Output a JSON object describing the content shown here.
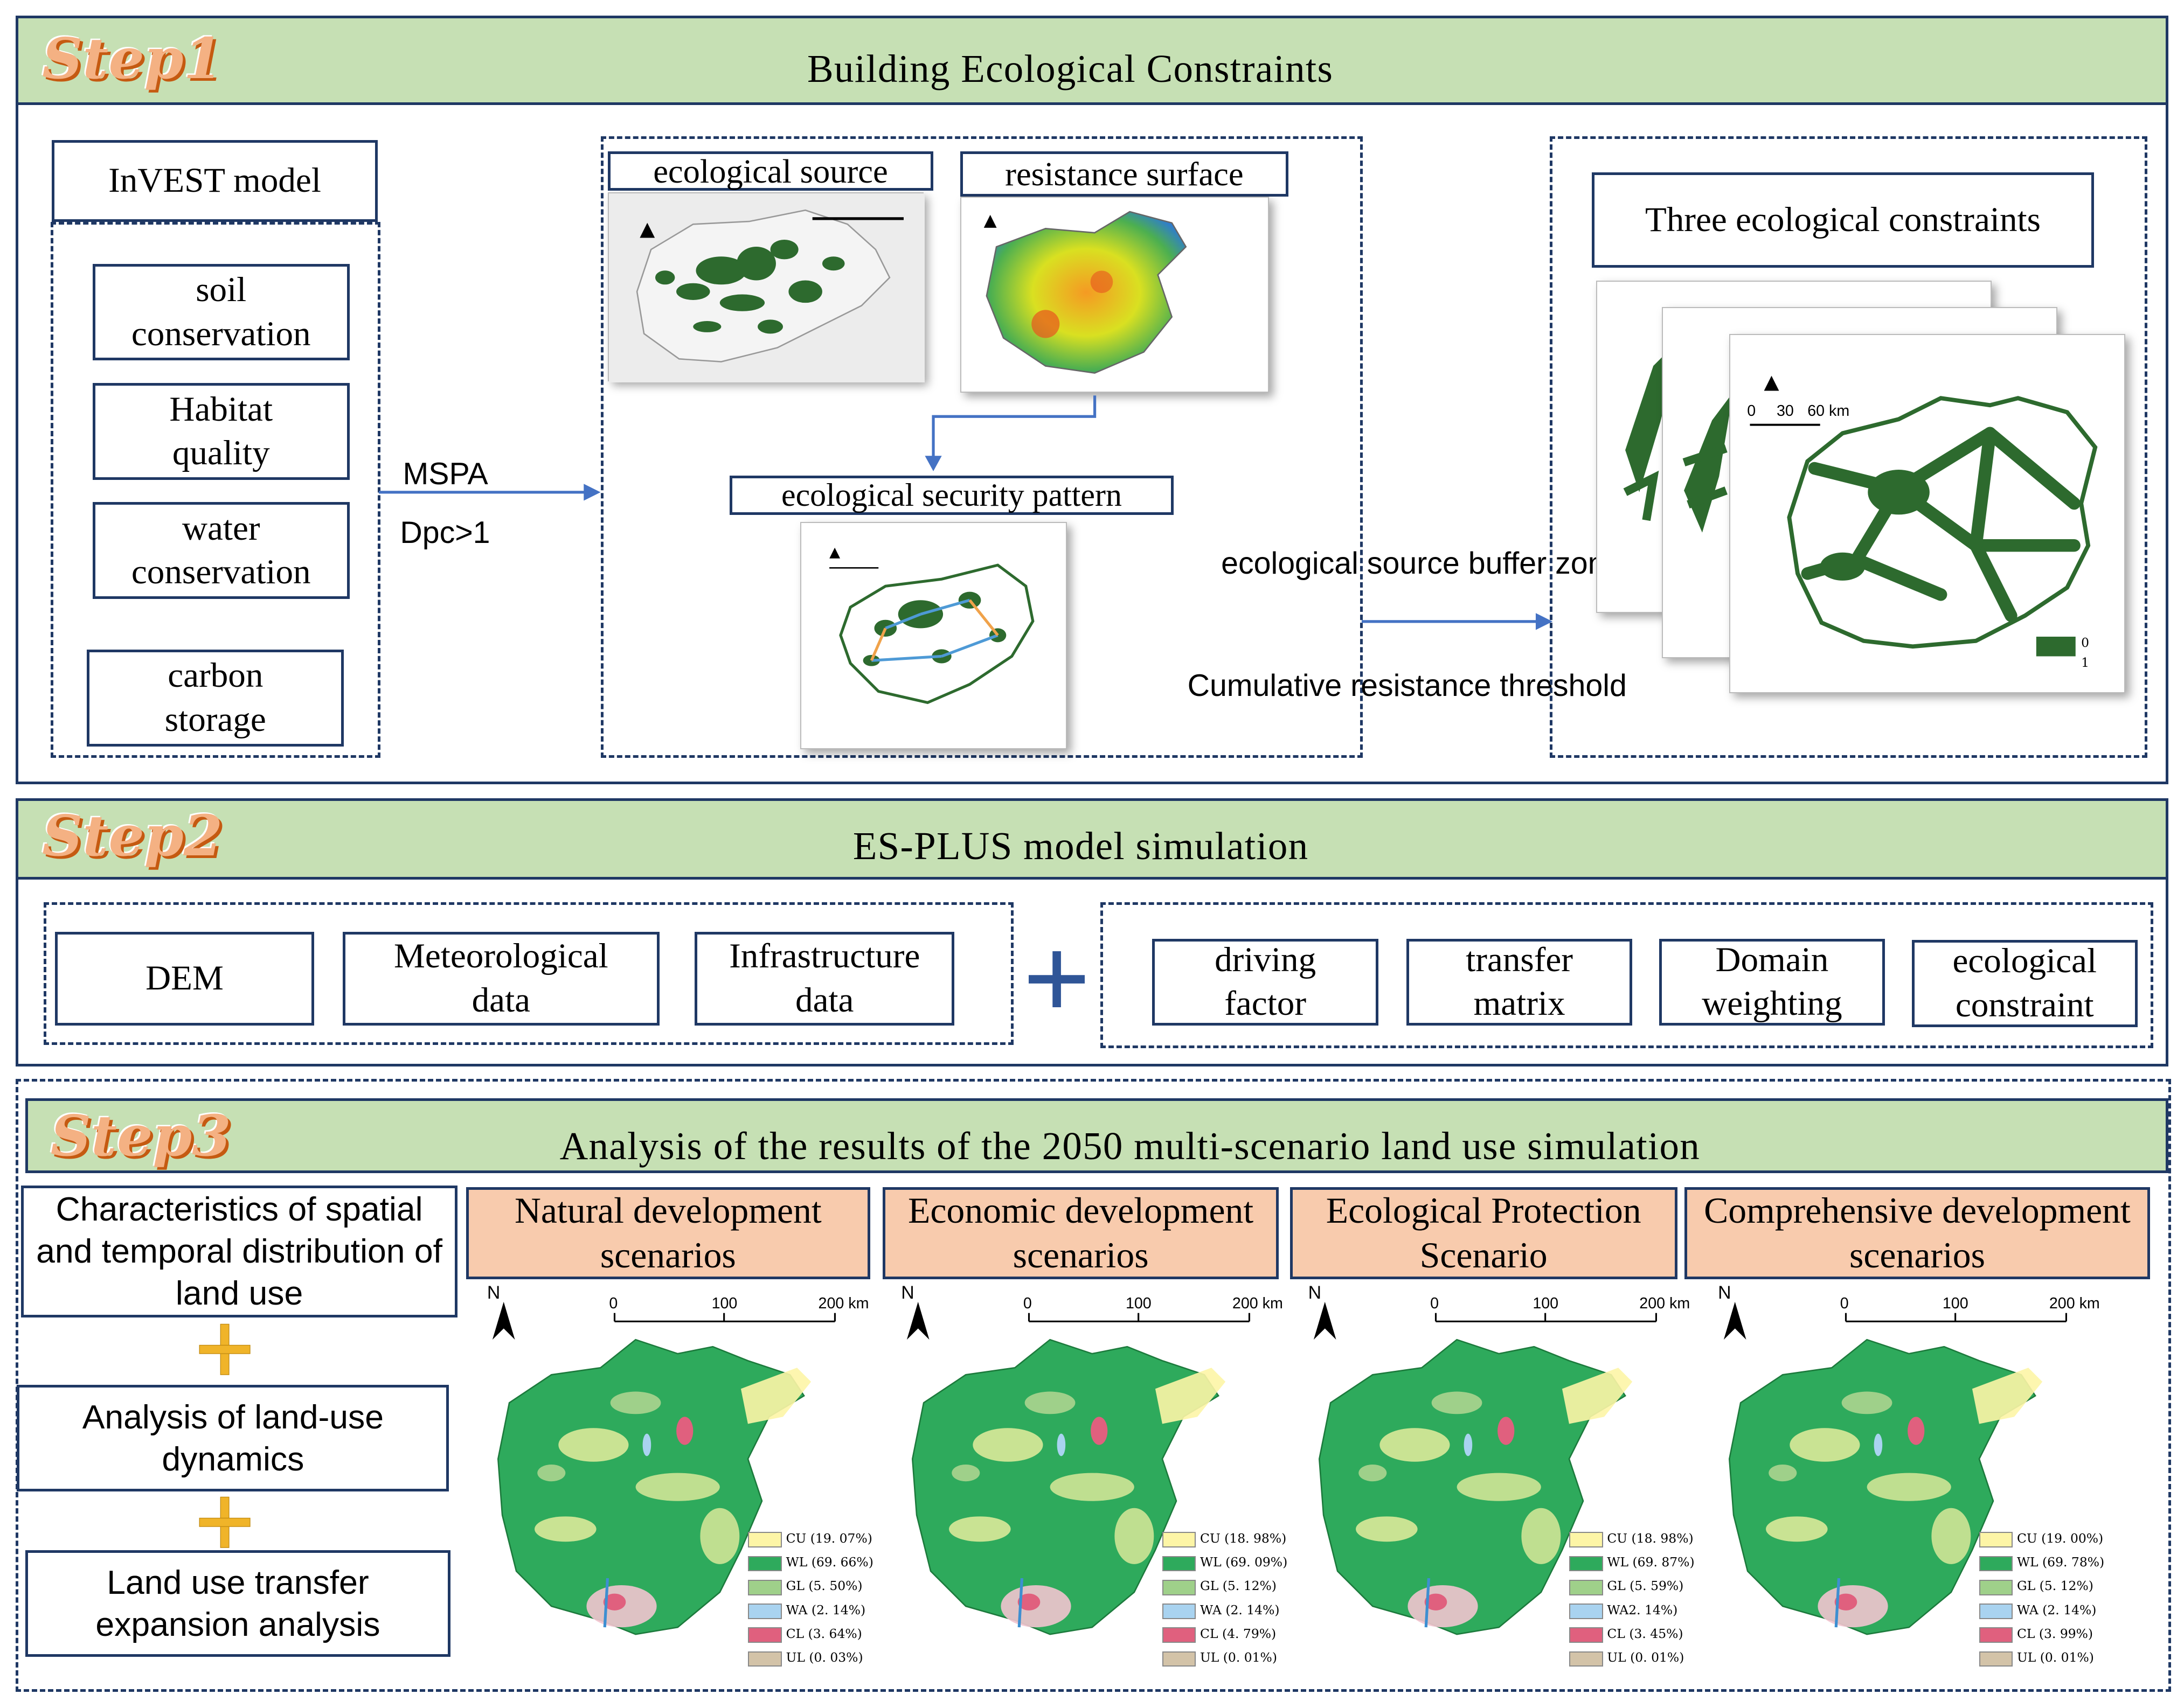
{
  "colors": {
    "panel_border": "#1f3864",
    "header_green": "#c6e0b4",
    "scenario_orange": "#f8cbad",
    "map_green": "#2e7d32",
    "arrow_blue": "#4472c4",
    "plus_gold": "#f0b429"
  },
  "step1": {
    "badge": "Step1",
    "title": "Building Ecological Constraints",
    "invest_title": "InVEST model",
    "invest_items": [
      "soil conservation",
      "Habitat quality",
      "water conservation",
      "carbon storage"
    ],
    "arrow_labels": [
      "MSPA",
      "Dpc>1"
    ],
    "eco_source": "ecological source",
    "resistance": "resistance surface",
    "security": "ecological security pattern",
    "mid_labels": [
      "ecological source buffer zone",
      "Cumulative resistance threshold"
    ],
    "three_title": "Three ecological constraints",
    "three_map_scale": [
      "0",
      "30",
      "60 km"
    ],
    "three_map_legend": [
      "0",
      "1"
    ]
  },
  "step2": {
    "badge": "Step2",
    "title": "ES-PLUS model simulation",
    "left_items": [
      "DEM",
      "Meteorological data",
      "Infrastructure data"
    ],
    "right_items": [
      "driving factor",
      "transfer matrix",
      "Domain weighting",
      "ecological constraint"
    ]
  },
  "step3": {
    "badge": "Step3",
    "title": "Analysis of the results of the 2050 multi-scenario land use simulation",
    "left_items": [
      "Characteristics of spatial and temporal distribution of land use",
      "Analysis of land-use dynamics",
      "Land use transfer expansion analysis"
    ],
    "scale_labels": [
      "0",
      "100",
      "200 km"
    ],
    "north": "N",
    "scenarios": [
      {
        "name": "Natural development scenarios",
        "legend": [
          "CU (19. 07%)",
          "WL (69. 66%)",
          "GL (5. 50%)",
          "WA (2. 14%)",
          "CL (3. 64%)",
          "UL (0. 03%)"
        ]
      },
      {
        "name": "Economic development scenarios",
        "legend": [
          "CU (18. 98%)",
          "WL (69. 09%)",
          "GL (5. 12%)",
          "WA (2. 14%)",
          "CL (4. 79%)",
          "UL (0. 01%)"
        ]
      },
      {
        "name": "Ecological Protection Scenario",
        "legend": [
          "CU (18. 98%)",
          "WL (69. 87%)",
          "GL (5. 59%)",
          "WA2. 14%)",
          "CL (3. 45%)",
          "UL (0. 01%)"
        ]
      },
      {
        "name": "Comprehensive development scenarios",
        "legend": [
          "CU (19. 00%)",
          "WL (69. 78%)",
          "GL (5. 12%)",
          "WA (2. 14%)",
          "CL (3. 99%)",
          "UL (0. 01%)"
        ]
      }
    ],
    "legend_colors": [
      "#fdf5a6",
      "#2eaa5c",
      "#9fd08a",
      "#a9d3f0",
      "#e0607e",
      "#d3c3a8"
    ]
  }
}
